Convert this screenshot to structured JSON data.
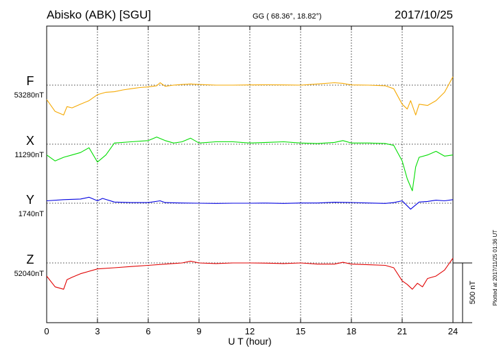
{
  "header": {
    "station": "Abisko (ABK)  [SGU]",
    "coords": "GG ( 68.36°,  18.82°)",
    "date": "2017/10/25"
  },
  "footer_note": "Plotted at 2017/11/25 01:36 UT",
  "chart_data": {
    "type": "line",
    "xlabel": "U T (hour)",
    "xlim": [
      0,
      24
    ],
    "x_ticks": [
      "0",
      "3",
      "6",
      "9",
      "12",
      "15",
      "18",
      "21",
      "24"
    ],
    "grid": true,
    "scale_bar": {
      "label": "500 nT",
      "value": 500
    },
    "series": [
      {
        "name": "F",
        "baseline_label": "53280nT",
        "baseline": 53280,
        "color": "#f5a800",
        "x": [
          0,
          0.5,
          1.0,
          1.2,
          1.5,
          2.0,
          2.5,
          3.0,
          3.5,
          4.0,
          4.5,
          5.0,
          5.5,
          6.0,
          6.5,
          6.7,
          7.0,
          7.5,
          8.0,
          8.5,
          9.0,
          10,
          11,
          12,
          13,
          14,
          15,
          16,
          17,
          17.5,
          18,
          19,
          20,
          20.5,
          21,
          21.3,
          21.5,
          21.8,
          22,
          22.5,
          23,
          23.5,
          24
        ],
        "y": [
          53160,
          53060,
          53030,
          53100,
          53090,
          53120,
          53150,
          53200,
          53220,
          53225,
          53240,
          53250,
          53260,
          53265,
          53275,
          53300,
          53270,
          53280,
          53285,
          53290,
          53285,
          53280,
          53280,
          53282,
          53283,
          53282,
          53280,
          53290,
          53300,
          53295,
          53282,
          53280,
          53275,
          53250,
          53120,
          53080,
          53150,
          53030,
          53120,
          53110,
          53150,
          53220,
          53350
        ]
      },
      {
        "name": "X",
        "baseline_label": "11290nT",
        "baseline": 11290,
        "color": "#00dd00",
        "x": [
          0,
          0.5,
          1.0,
          1.5,
          2.0,
          2.5,
          3.0,
          3.5,
          4.0,
          5.0,
          6.0,
          6.5,
          7.0,
          7.5,
          8.0,
          8.5,
          9.0,
          10,
          11,
          12,
          13,
          14,
          15,
          16,
          17,
          17.5,
          18,
          19,
          20,
          20.5,
          21,
          21.3,
          21.6,
          21.8,
          22,
          22.5,
          23,
          23.5,
          24
        ],
        "y": [
          11200,
          11150,
          11180,
          11200,
          11220,
          11260,
          11140,
          11200,
          11300,
          11310,
          11320,
          11350,
          11320,
          11300,
          11310,
          11340,
          11300,
          11310,
          11310,
          11300,
          11305,
          11310,
          11300,
          11295,
          11305,
          11320,
          11300,
          11300,
          11295,
          11280,
          11150,
          11000,
          10900,
          11100,
          11180,
          11200,
          11230,
          11190,
          11200
        ]
      },
      {
        "name": "Y",
        "baseline_label": "1740nT",
        "baseline": 1740,
        "color": "#0000e0",
        "x": [
          0,
          1.0,
          2.0,
          2.5,
          3.0,
          3.3,
          4.0,
          5.0,
          6.0,
          6.7,
          7.0,
          8.0,
          9.0,
          10,
          11,
          12,
          13,
          14,
          15,
          16,
          17,
          18,
          19,
          20,
          20.5,
          21,
          21.5,
          22,
          22.5,
          23,
          23.5,
          24
        ],
        "y": [
          1760,
          1770,
          1775,
          1790,
          1760,
          1780,
          1750,
          1745,
          1745,
          1760,
          1745,
          1742,
          1740,
          1738,
          1740,
          1740,
          1741,
          1738,
          1742,
          1742,
          1748,
          1746,
          1742,
          1738,
          1745,
          1760,
          1690,
          1750,
          1755,
          1765,
          1760,
          1770
        ]
      },
      {
        "name": "Z",
        "baseline_label": "52040nT",
        "baseline": 52040,
        "color": "#e00000",
        "x": [
          0,
          0.5,
          1.0,
          1.2,
          1.5,
          2.0,
          3.0,
          4.0,
          5.0,
          6.0,
          7.0,
          8.0,
          8.5,
          9.0,
          10,
          11,
          12,
          13,
          14,
          15,
          16,
          17,
          17.5,
          18,
          19,
          20,
          20.5,
          21,
          21.3,
          21.6,
          21.9,
          22.2,
          22.5,
          23,
          23.5,
          24
        ],
        "y": [
          51930,
          51840,
          51820,
          51900,
          51920,
          51950,
          51990,
          52000,
          52010,
          52020,
          52030,
          52040,
          52055,
          52040,
          52035,
          52040,
          52040,
          52038,
          52035,
          52040,
          52030,
          52030,
          52045,
          52030,
          52025,
          52020,
          52000,
          51890,
          51860,
          51820,
          51870,
          51840,
          51910,
          51930,
          51980,
          52080
        ]
      }
    ]
  }
}
